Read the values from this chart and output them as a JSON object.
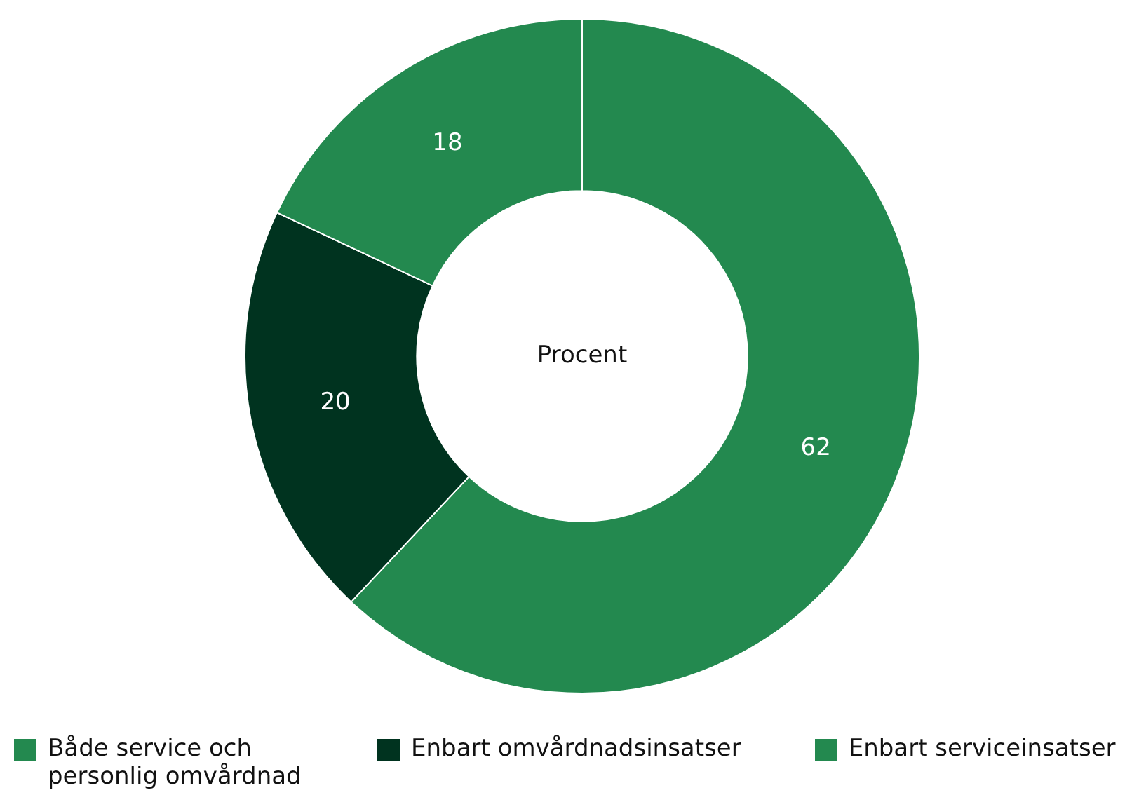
{
  "chart_data": {
    "type": "donut",
    "categories": [
      "Både service och personlig omvårdnad",
      "Enbart omvårdnadsinsatser",
      "Enbart serviceinsatser"
    ],
    "values": [
      62,
      20,
      18
    ],
    "colors": [
      "#23894f",
      "#00331f",
      "#23894f"
    ],
    "data_labels": true,
    "legend": "bottom",
    "annotations": [
      "Procent"
    ]
  }
}
